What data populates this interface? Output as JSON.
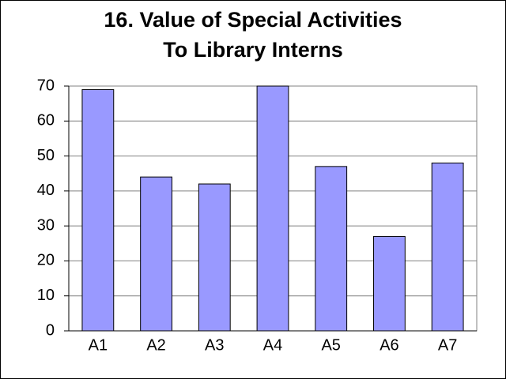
{
  "chart_data": {
    "type": "bar",
    "title": [
      "16. Value of Special Activities",
      "To Library Interns"
    ],
    "categories": [
      "A1",
      "A2",
      "A3",
      "A4",
      "A5",
      "A6",
      "A7"
    ],
    "values": [
      69,
      44,
      42,
      70,
      47,
      27,
      48
    ],
    "color": "#9999ff",
    "ylim": [
      0,
      70
    ],
    "yticks": [
      0,
      10,
      20,
      30,
      40,
      50,
      60,
      70
    ],
    "grid": true
  }
}
